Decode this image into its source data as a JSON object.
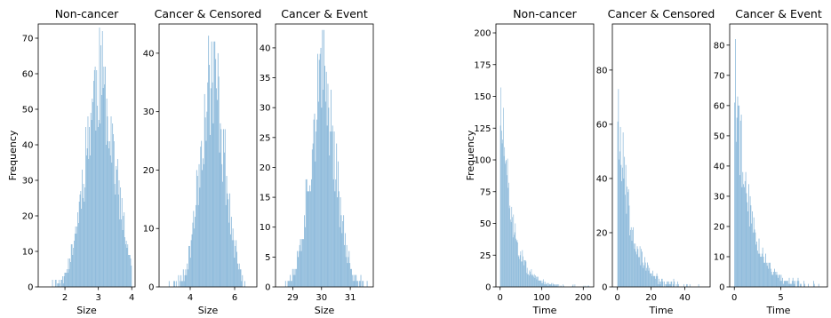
{
  "chart_data": [
    {
      "type": "bar",
      "title": "Non-cancer",
      "xlabel": "Size",
      "ylabel": "Frequency",
      "xlim": [
        1.2,
        4.1
      ],
      "ylim": [
        0,
        74
      ],
      "xticks": [
        2,
        3,
        4
      ],
      "yticks": [
        0,
        10,
        20,
        30,
        40,
        50,
        60,
        70
      ],
      "dist": {
        "shape": "gauss",
        "center": 3.05,
        "spread": 0.45,
        "peak": 58,
        "lo": 1.4,
        "hi": 4.0,
        "bins": 120,
        "seed": 11
      },
      "color": "#8fbbdb"
    },
    {
      "type": "bar",
      "title": "Cancer & Censored",
      "xlabel": "Size",
      "ylabel": "",
      "xlim": [
        2.6,
        7.0
      ],
      "ylim": [
        0,
        45
      ],
      "xticks": [
        4,
        6
      ],
      "yticks": [
        0,
        10,
        20,
        30,
        40
      ],
      "dist": {
        "shape": "gauss",
        "center": 5.0,
        "spread": 0.55,
        "peak": 36,
        "lo": 3.0,
        "hi": 6.9,
        "bins": 110,
        "seed": 23
      },
      "color": "#8fbbdb"
    },
    {
      "type": "bar",
      "title": "Cancer & Event",
      "xlabel": "Size",
      "ylabel": "",
      "xlim": [
        28.4,
        31.8
      ],
      "ylim": [
        0,
        44
      ],
      "xticks": [
        29,
        30,
        31
      ],
      "yticks": [
        0,
        5,
        10,
        15,
        20,
        25,
        30,
        35,
        40
      ],
      "dist": {
        "shape": "gauss",
        "center": 30.05,
        "spread": 0.45,
        "peak": 34,
        "lo": 28.6,
        "hi": 31.6,
        "bins": 110,
        "seed": 37
      },
      "color": "#8fbbdb"
    },
    {
      "type": "bar",
      "title": "Non-cancer",
      "xlabel": "Time",
      "ylabel": "Frequency",
      "xlim": [
        -10,
        225
      ],
      "ylim": [
        0,
        207
      ],
      "xticks": [
        0,
        100,
        200
      ],
      "yticks": [
        0,
        25,
        50,
        75,
        100,
        125,
        150,
        175,
        200
      ],
      "dist": {
        "shape": "exp",
        "start": 0,
        "decay": 28,
        "peak": 150,
        "lo": 0,
        "hi": 215,
        "bins": 150,
        "seed": 51
      },
      "color": "#8fbbdb"
    },
    {
      "type": "bar",
      "title": "Cancer & Censored",
      "xlabel": "Time",
      "ylabel": "",
      "xlim": [
        -3,
        55
      ],
      "ylim": [
        0,
        97
      ],
      "xticks": [
        0,
        20,
        40
      ],
      "yticks": [
        0,
        20,
        40,
        60,
        80
      ],
      "dist": {
        "shape": "exp",
        "start": 0,
        "decay": 7.5,
        "peak": 72,
        "lo": 0,
        "hi": 52,
        "bins": 130,
        "seed": 67
      },
      "color": "#8fbbdb"
    },
    {
      "type": "bar",
      "title": "Cancer & Event",
      "xlabel": "Time",
      "ylabel": "",
      "xlim": [
        -0.5,
        10
      ],
      "ylim": [
        0,
        87
      ],
      "xticks": [
        0,
        5
      ],
      "yticks": [
        0,
        10,
        20,
        30,
        40,
        50,
        60,
        70,
        80
      ],
      "dist": {
        "shape": "exp",
        "start": 0,
        "decay": 1.6,
        "peak": 72,
        "lo": 0,
        "hi": 9.5,
        "bins": 120,
        "seed": 79
      },
      "color": "#8fbbdb"
    }
  ]
}
